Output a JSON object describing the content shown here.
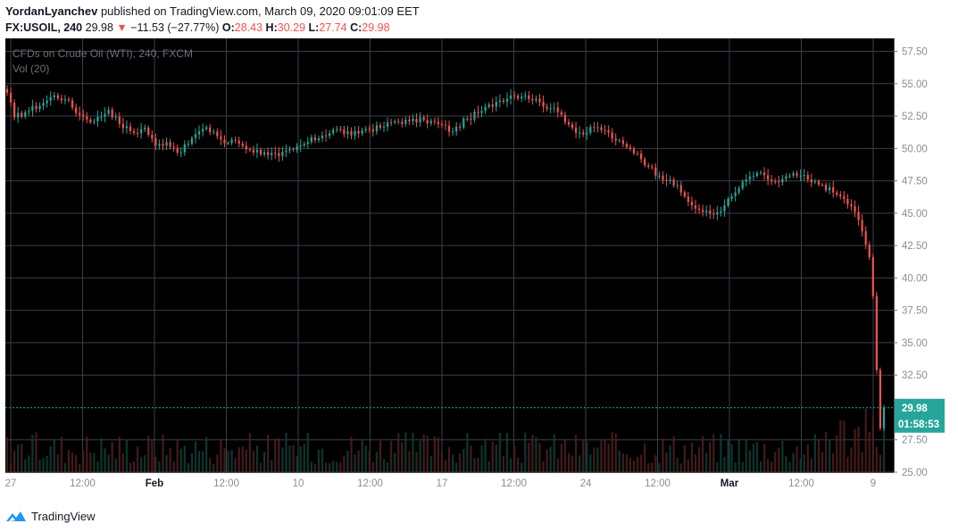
{
  "header": {
    "author": "YordanLyanchev",
    "published_text": "published on TradingView.com, March 09, 2020 09:01:09 EET",
    "symbol": "FX:USOIL, 240",
    "last": "29.98",
    "change_arrow": "▼",
    "change": "−11.53 (−27.77%)",
    "o_label": "O:",
    "o_value": "28.43",
    "h_label": "H:",
    "h_value": "30.29",
    "l_label": "L:",
    "l_value": "27.74",
    "c_label": "C:",
    "c_value": "29.98"
  },
  "footer": {
    "brand": "TradingView"
  },
  "colors": {
    "background": "#000000",
    "grid": "#3c3f4a",
    "up": "#26a69a",
    "down": "#ef5350",
    "price_tag": "#26a69a",
    "axis_text": "#8a8d96",
    "legend_text": "#6b6e78"
  },
  "chart_data": {
    "type": "candlestick",
    "title": "CFDs on Crude Oil (WTI), 240, FXCM",
    "indicator_label": "Vol (20)",
    "y_ticks": [
      "57.50",
      "55.00",
      "52.50",
      "50.00",
      "47.50",
      "45.00",
      "42.50",
      "40.00",
      "37.50",
      "35.00",
      "32.50",
      "27.50",
      "25.00"
    ],
    "ylim": [
      25,
      58.5
    ],
    "x_ticks": [
      "27",
      "12:00",
      "Feb",
      "12:00",
      "10",
      "12:00",
      "17",
      "12:00",
      "24",
      "12:00",
      "Mar",
      "12:00",
      "9"
    ],
    "bold_x_ticks": [
      "Feb",
      "Mar"
    ],
    "grid": true,
    "price_tag": {
      "value": 29.98,
      "label": "29.98",
      "countdown": "01:58:53"
    },
    "price_anchors": [
      [
        0,
        54.3
      ],
      [
        2,
        52.4
      ],
      [
        5,
        52.8
      ],
      [
        10,
        53.5
      ],
      [
        13,
        54.1
      ],
      [
        16,
        53.8
      ],
      [
        20,
        52.6
      ],
      [
        24,
        52.1
      ],
      [
        28,
        53.0
      ],
      [
        31,
        51.9
      ],
      [
        35,
        51.2
      ],
      [
        38,
        51.6
      ],
      [
        41,
        50.2
      ],
      [
        44,
        50.5
      ],
      [
        48,
        49.7
      ],
      [
        51,
        50.8
      ],
      [
        54,
        51.5
      ],
      [
        57,
        51.3
      ],
      [
        60,
        50.4
      ],
      [
        63,
        50.6
      ],
      [
        67,
        49.9
      ],
      [
        71,
        49.7
      ],
      [
        75,
        49.4
      ],
      [
        79,
        49.9
      ],
      [
        83,
        50.5
      ],
      [
        87,
        51.0
      ],
      [
        91,
        51.5
      ],
      [
        95,
        51.0
      ],
      [
        99,
        51.5
      ],
      [
        103,
        51.6
      ],
      [
        107,
        52.1
      ],
      [
        111,
        52.1
      ],
      [
        115,
        52.2
      ],
      [
        119,
        51.9
      ],
      [
        123,
        51.3
      ],
      [
        127,
        52.3
      ],
      [
        131,
        52.9
      ],
      [
        135,
        53.6
      ],
      [
        139,
        54.1
      ],
      [
        143,
        54.1
      ],
      [
        147,
        53.6
      ],
      [
        150,
        53.1
      ],
      [
        153,
        52.6
      ],
      [
        156,
        51.6
      ],
      [
        159,
        51.1
      ],
      [
        162,
        51.6
      ],
      [
        165,
        51.4
      ],
      [
        168,
        50.6
      ],
      [
        171,
        50.1
      ],
      [
        174,
        49.6
      ],
      [
        177,
        48.6
      ],
      [
        180,
        47.9
      ],
      [
        183,
        47.6
      ],
      [
        186,
        46.6
      ],
      [
        189,
        45.6
      ],
      [
        192,
        45.1
      ],
      [
        195,
        44.9
      ],
      [
        198,
        45.6
      ],
      [
        201,
        46.6
      ],
      [
        204,
        47.6
      ],
      [
        207,
        48.1
      ],
      [
        210,
        47.6
      ],
      [
        213,
        47.4
      ],
      [
        216,
        47.9
      ],
      [
        219,
        47.9
      ],
      [
        222,
        47.4
      ],
      [
        225,
        47.2
      ],
      [
        228,
        46.6
      ],
      [
        231,
        46.1
      ],
      [
        234,
        45.1
      ],
      [
        236,
        43.6
      ],
      [
        238,
        41.6
      ],
      [
        239,
        38.6
      ],
      [
        240,
        32.9
      ],
      [
        241,
        28.4
      ],
      [
        242,
        29.98
      ]
    ],
    "volume_max": 13000
  }
}
